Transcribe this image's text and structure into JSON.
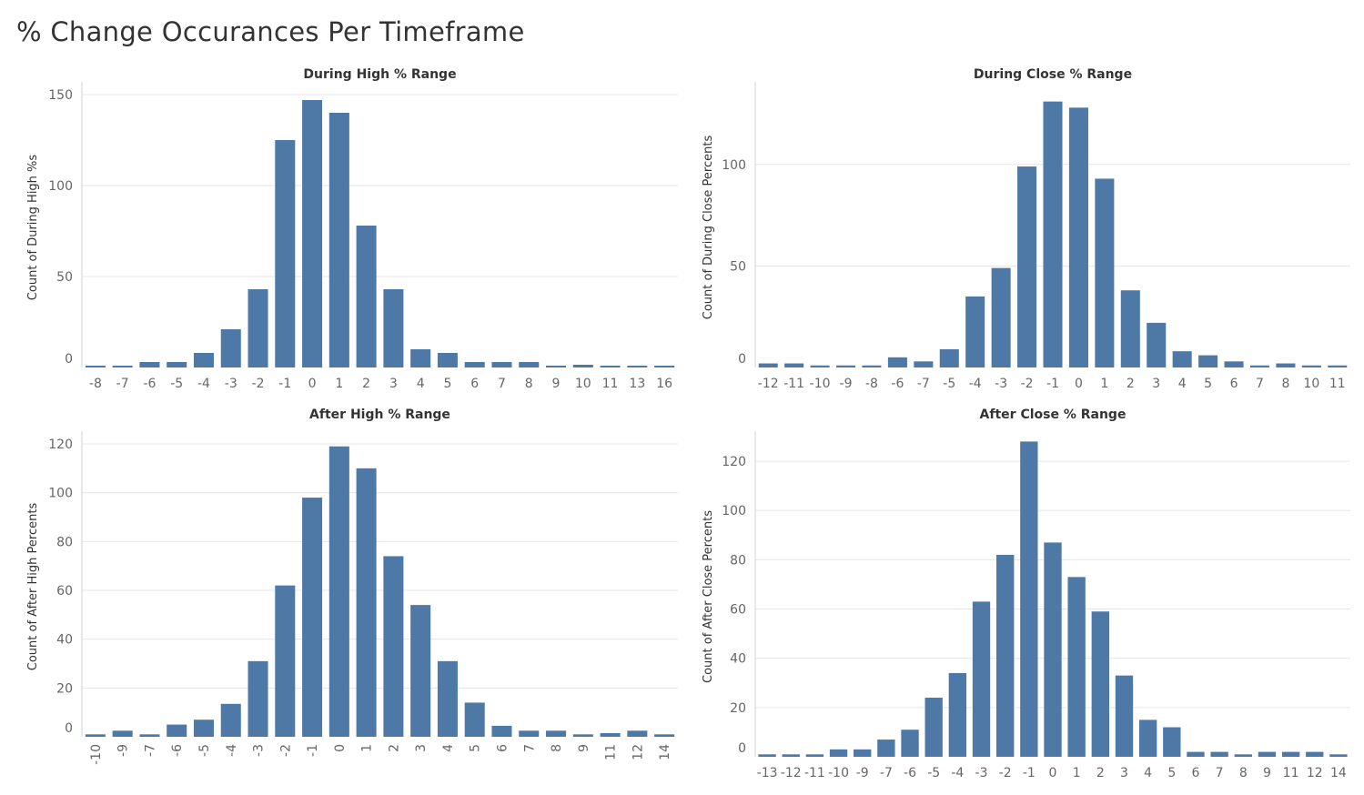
{
  "title": "% Change Occurances Per Timeframe",
  "colors": {
    "bar": "#4e79a7"
  },
  "chart_data": [
    {
      "type": "bar",
      "title": "During High % Range",
      "ylabel": "Count of During High %s",
      "categories": [
        "-8",
        "-7",
        "-6",
        "-5",
        "-4",
        "-3",
        "-2",
        "-1",
        "0",
        "1",
        "2",
        "3",
        "4",
        "5",
        "6",
        "7",
        "8",
        "9",
        "10",
        "11",
        "13",
        "16"
      ],
      "values": [
        1,
        1,
        3,
        3,
        8,
        21,
        43,
        125,
        147,
        140,
        78,
        43,
        10,
        8,
        3,
        3,
        3,
        1,
        1.5,
        1,
        1,
        1
      ],
      "yticks": [
        0,
        50,
        100,
        150
      ],
      "ylim": [
        0,
        154
      ],
      "xtick_rotation": 0
    },
    {
      "type": "bar",
      "title": "During Close % Range",
      "ylabel": "Count of During Close Percents",
      "categories": [
        "-12",
        "-11",
        "-10",
        "-9",
        "-8",
        "-6",
        "-7",
        "-5",
        "-4",
        "-3",
        "-2",
        "-1",
        "0",
        "1",
        "2",
        "3",
        "4",
        "5",
        "6",
        "7",
        "8",
        "10",
        "11"
      ],
      "values": [
        2,
        2,
        1,
        1,
        1,
        5,
        3,
        9,
        35,
        49,
        99,
        131,
        128,
        93,
        38,
        22,
        8,
        6,
        3,
        1,
        2,
        1,
        1
      ],
      "yticks": [
        0,
        50,
        100
      ],
      "ylim": [
        0,
        138
      ],
      "xtick_rotation": 0
    },
    {
      "type": "bar",
      "title": "After High % Range",
      "ylabel": "Count of After High Percents",
      "categories": [
        "-10",
        "-9",
        "-7",
        "-6",
        "-5",
        "-4",
        "-3",
        "-2",
        "-1",
        "0",
        "1",
        "2",
        "3",
        "4",
        "5",
        "6",
        "7",
        "8",
        "9",
        "11",
        "12",
        "14"
      ],
      "values": [
        1,
        2.5,
        1,
        5,
        7,
        13.5,
        31,
        62,
        98,
        119,
        110,
        74,
        54,
        31,
        14,
        4.5,
        2.5,
        2.5,
        1,
        1.5,
        2.5,
        1
      ],
      "yticks": [
        0,
        20,
        40,
        60,
        80,
        100,
        120
      ],
      "ylim": [
        0,
        123
      ],
      "xtick_rotation": -90
    },
    {
      "type": "bar",
      "title": "After Close % Range",
      "ylabel": "Count of After Close Percents",
      "categories": [
        "-13",
        "-12",
        "-11",
        "-10",
        "-9",
        "-7",
        "-6",
        "-5",
        "-4",
        "-3",
        "-2",
        "-1",
        "0",
        "1",
        "2",
        "3",
        "4",
        "5",
        "6",
        "7",
        "8",
        "9",
        "11",
        "12",
        "14"
      ],
      "values": [
        1,
        1,
        1,
        3,
        3,
        7,
        11,
        24,
        34,
        63,
        82,
        128,
        87,
        73,
        59,
        33,
        15,
        12,
        2,
        2,
        1,
        2,
        2,
        2,
        1
      ],
      "yticks": [
        0,
        20,
        40,
        60,
        80,
        100,
        120
      ],
      "ylim": [
        0,
        130
      ],
      "xtick_rotation": 0
    }
  ]
}
